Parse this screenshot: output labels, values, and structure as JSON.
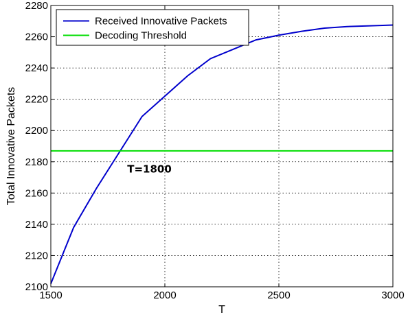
{
  "chart_data": {
    "type": "line",
    "xlabel": "T",
    "ylabel": "Total Innovative Packets",
    "xlim": [
      1500,
      3000
    ],
    "ylim": [
      2100,
      2280
    ],
    "xticks": [
      1500,
      2000,
      2500,
      3000
    ],
    "yticks": [
      2100,
      2120,
      2140,
      2160,
      2180,
      2200,
      2220,
      2240,
      2260,
      2280
    ],
    "grid": true,
    "legend_position": "top-left",
    "series": [
      {
        "name": "Received Innovative Packets",
        "color": "#0000cc",
        "x": [
          1500,
          1600,
          1700,
          1800,
          1900,
          2000,
          2100,
          2200,
          2300,
          2400,
          2500,
          2600,
          2700,
          2800,
          2900,
          3000
        ],
        "y": [
          2102,
          2138,
          2163,
          2186,
          2209,
          2222,
          2235,
          2246,
          2252,
          2258,
          2261,
          2263.5,
          2265.5,
          2266.5,
          2267,
          2267.5
        ]
      },
      {
        "name": "Decoding Threshold",
        "color": "#00dd00",
        "x": [
          1500,
          3000
        ],
        "y": [
          2187,
          2187
        ]
      }
    ],
    "annotations": [
      {
        "text": "T=1800",
        "x": 1835,
        "y": 2178
      }
    ]
  }
}
